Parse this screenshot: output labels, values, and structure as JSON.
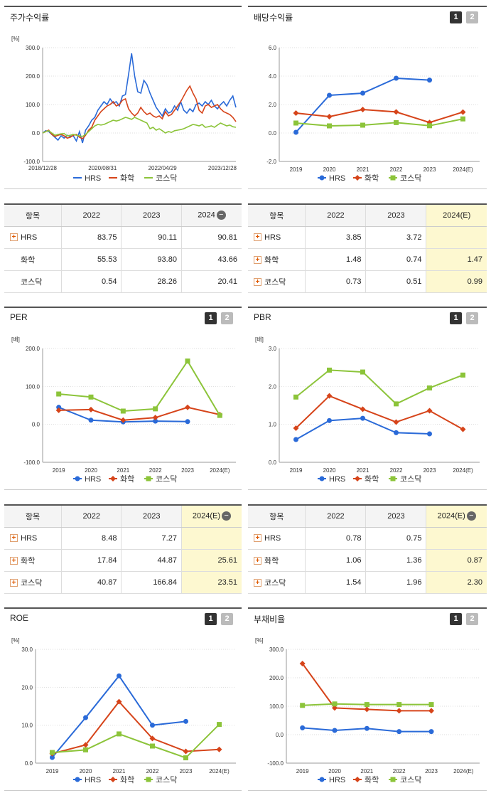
{
  "colors": {
    "hrs": "#2a6ad8",
    "chem": "#d6441a",
    "kosdaq": "#8cc43a"
  },
  "legend": [
    "HRS",
    "화학",
    "코스닥"
  ],
  "page_buttons": [
    "1",
    "2"
  ],
  "stock_return": {
    "title": "주가수익률",
    "chart_data": {
      "type": "line",
      "unit": "[%]",
      "ylim": [
        -100,
        300
      ],
      "yticks": [
        "300.0",
        "200.0",
        "100.0",
        "0.0",
        "-100.0"
      ],
      "xticks": [
        "2018/12/28",
        "2020/08/31",
        "2022/04/29",
        "2023/12/28"
      ],
      "series": [
        {
          "name": "HRS",
          "values": [
            0,
            8,
            5,
            -5,
            -15,
            -25,
            -10,
            -18,
            -8,
            -12,
            -10,
            -28,
            5,
            -35,
            10,
            25,
            45,
            55,
            80,
            95,
            110,
            100,
            120,
            105,
            110,
            95,
            130,
            135,
            205,
            280,
            200,
            145,
            140,
            185,
            170,
            140,
            115,
            90,
            75,
            60,
            85,
            70,
            75,
            95,
            80,
            110,
            80,
            70,
            85,
            75,
            100,
            105,
            95,
            110,
            100,
            115,
            95,
            85,
            100,
            110,
            95,
            115,
            130,
            90
          ]
        },
        {
          "name": "화학",
          "values": [
            0,
            5,
            10,
            -5,
            -12,
            -8,
            -5,
            -10,
            -18,
            -15,
            -8,
            -5,
            -15,
            -20,
            -8,
            10,
            20,
            45,
            60,
            75,
            85,
            95,
            100,
            110,
            95,
            100,
            115,
            120,
            85,
            70,
            60,
            70,
            90,
            75,
            65,
            70,
            60,
            55,
            60,
            50,
            75,
            60,
            65,
            80,
            95,
            110,
            130,
            150,
            165,
            140,
            120,
            80,
            70,
            95,
            100,
            90,
            95,
            100,
            85,
            75,
            70,
            65,
            55,
            40
          ]
        },
        {
          "name": "코스닥",
          "values": [
            0,
            5,
            8,
            0,
            -8,
            -5,
            -3,
            -2,
            -10,
            -8,
            -5,
            -8,
            -10,
            -12,
            -5,
            5,
            15,
            25,
            30,
            28,
            30,
            35,
            40,
            45,
            42,
            45,
            50,
            55,
            52,
            48,
            55,
            50,
            45,
            40,
            35,
            15,
            20,
            10,
            15,
            8,
            0,
            5,
            2,
            8,
            10,
            12,
            15,
            20,
            25,
            30,
            28,
            25,
            30,
            20,
            22,
            25,
            20,
            28,
            35,
            30,
            25,
            28,
            22,
            20
          ]
        }
      ]
    }
  },
  "dividend": {
    "title": "배당수익률",
    "chart_data": {
      "type": "line",
      "ylim": [
        -2,
        6
      ],
      "yticks": [
        "6.0",
        "4.0",
        "2.0",
        "0.0",
        "-2.0"
      ],
      "categories": [
        "2019",
        "2020",
        "2021",
        "2022",
        "2023",
        "2024(E)"
      ],
      "series": [
        {
          "name": "HRS",
          "values": [
            0.05,
            2.65,
            2.8,
            3.85,
            3.72,
            null
          ]
        },
        {
          "name": "화학",
          "values": [
            1.4,
            1.15,
            1.65,
            1.48,
            0.74,
            1.47
          ]
        },
        {
          "name": "코스닥",
          "values": [
            0.7,
            0.5,
            0.55,
            0.73,
            0.51,
            0.99
          ]
        }
      ]
    }
  },
  "per": {
    "title": "PER",
    "chart_data": {
      "type": "line",
      "unit": "[배]",
      "ylim": [
        -100,
        200
      ],
      "yticks": [
        "200.0",
        "100.0",
        "0.0",
        "-100.0"
      ],
      "categories": [
        "2019",
        "2020",
        "2021",
        "2022",
        "2023",
        "2024(E)"
      ],
      "series": [
        {
          "name": "HRS",
          "values": [
            45,
            11,
            6.5,
            8.48,
            7.27,
            null
          ]
        },
        {
          "name": "화학",
          "values": [
            37,
            39,
            11,
            17.84,
            44.87,
            25.61
          ]
        },
        {
          "name": "코스닥",
          "values": [
            80,
            72,
            35,
            40.87,
            166.84,
            23.51
          ]
        }
      ]
    }
  },
  "pbr": {
    "title": "PBR",
    "chart_data": {
      "type": "line",
      "unit": "[배]",
      "ylim": [
        0,
        3
      ],
      "yticks": [
        "3.0",
        "2.0",
        "1.0",
        "0.0"
      ],
      "categories": [
        "2019",
        "2020",
        "2021",
        "2022",
        "2023",
        "2024(E)"
      ],
      "series": [
        {
          "name": "HRS",
          "values": [
            0.6,
            1.1,
            1.16,
            0.78,
            0.75,
            null
          ]
        },
        {
          "name": "화학",
          "values": [
            0.9,
            1.75,
            1.4,
            1.06,
            1.36,
            0.87
          ]
        },
        {
          "name": "코스닥",
          "values": [
            1.72,
            2.43,
            2.38,
            1.54,
            1.96,
            2.3
          ]
        }
      ]
    }
  },
  "roe": {
    "title": "ROE",
    "chart_data": {
      "type": "line",
      "unit": "[%]",
      "ylim": [
        0,
        30
      ],
      "yticks": [
        "30.0",
        "20.0",
        "10.0",
        "0.0"
      ],
      "categories": [
        "2019",
        "2020",
        "2021",
        "2022",
        "2023",
        "2024(E)"
      ],
      "series": [
        {
          "name": "HRS",
          "values": [
            1.5,
            12,
            23,
            10,
            11,
            null
          ]
        },
        {
          "name": "화학",
          "values": [
            2.5,
            4.8,
            16.2,
            6.5,
            3.1,
            3.6
          ]
        },
        {
          "name": "코스닥",
          "values": [
            2.8,
            3.5,
            7.7,
            4.5,
            1.4,
            10.2
          ]
        }
      ]
    }
  },
  "debt": {
    "title": "부채비율",
    "chart_data": {
      "type": "line",
      "unit": "[%]",
      "ylim": [
        -100,
        300
      ],
      "yticks": [
        "300.0",
        "200.0",
        "100.0",
        "0.0",
        "-100.0"
      ],
      "categories": [
        "2019",
        "2020",
        "2021",
        "2022",
        "2023",
        "2024(E)"
      ],
      "series": [
        {
          "name": "HRS",
          "values": [
            24,
            15,
            22,
            11,
            11,
            null
          ]
        },
        {
          "name": "화학",
          "values": [
            250,
            94,
            89,
            84,
            84,
            null
          ]
        },
        {
          "name": "코스닥",
          "values": [
            103,
            108,
            106,
            106,
            106,
            null
          ]
        }
      ]
    }
  },
  "tables": {
    "stock_return": {
      "header": [
        "항목",
        "2022",
        "2023",
        "2024"
      ],
      "rows": [
        {
          "name": "HRS",
          "plus": true,
          "vals": [
            "83.75",
            "90.11",
            "90.81"
          ]
        },
        {
          "name": "화학",
          "plus": false,
          "vals": [
            "55.53",
            "93.80",
            "43.66"
          ]
        },
        {
          "name": "코스닥",
          "plus": false,
          "vals": [
            "0.54",
            "28.26",
            "20.41"
          ]
        }
      ]
    },
    "dividend": {
      "header": [
        "항목",
        "2022",
        "2023",
        "2024(E)"
      ],
      "rows": [
        {
          "name": "HRS",
          "plus": true,
          "vals": [
            "3.85",
            "3.72",
            ""
          ]
        },
        {
          "name": "화학",
          "plus": true,
          "vals": [
            "1.48",
            "0.74",
            "1.47"
          ]
        },
        {
          "name": "코스닥",
          "plus": true,
          "vals": [
            "0.73",
            "0.51",
            "0.99"
          ]
        }
      ]
    },
    "per": {
      "header": [
        "항목",
        "2022",
        "2023",
        "2024(E)"
      ],
      "rows": [
        {
          "name": "HRS",
          "plus": true,
          "vals": [
            "8.48",
            "7.27",
            ""
          ]
        },
        {
          "name": "화학",
          "plus": true,
          "vals": [
            "17.84",
            "44.87",
            "25.61"
          ]
        },
        {
          "name": "코스닥",
          "plus": true,
          "vals": [
            "40.87",
            "166.84",
            "23.51"
          ]
        }
      ]
    },
    "pbr": {
      "header": [
        "항목",
        "2022",
        "2023",
        "2024(E)"
      ],
      "rows": [
        {
          "name": "HRS",
          "plus": true,
          "vals": [
            "0.78",
            "0.75",
            ""
          ]
        },
        {
          "name": "화학",
          "plus": true,
          "vals": [
            "1.06",
            "1.36",
            "0.87"
          ]
        },
        {
          "name": "코스닥",
          "plus": true,
          "vals": [
            "1.54",
            "1.96",
            "2.30"
          ]
        }
      ]
    }
  }
}
